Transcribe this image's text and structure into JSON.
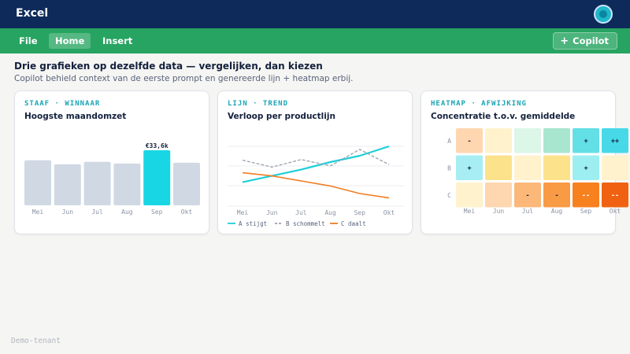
{
  "app": {
    "title": "Excel"
  },
  "ribbon": {
    "tabs": [
      {
        "label": "File",
        "active": false
      },
      {
        "label": "Home",
        "active": true
      },
      {
        "label": "Insert",
        "active": false
      }
    ],
    "copilot_label": "Copilot"
  },
  "main": {
    "heading": "Drie grafieken op dezelfde data — vergelijken, dan kiezen",
    "subheading": "Copilot behield context van de eerste prompt en genereerde lijn + heatmap erbij."
  },
  "cards": [
    {
      "eyebrow": "STAAF · WINNAAR",
      "title": "Hoogste maandomzet"
    },
    {
      "eyebrow": "LIJN · TREND",
      "title": "Verloop per productlijn"
    },
    {
      "eyebrow": "HEATMAP · AFWIJKING",
      "title": "Concentratie t.o.v. gemiddelde"
    }
  ],
  "chart_data": [
    {
      "type": "bar",
      "categories": [
        "Mei",
        "Jun",
        "Jul",
        "Aug",
        "Sep",
        "Okt"
      ],
      "values": [
        27.5,
        25.0,
        26.5,
        25.5,
        33.6,
        26.0
      ],
      "highlight_index": 4,
      "highlight_label": "€33,6k",
      "ylim": [
        0,
        36
      ],
      "colors": {
        "bar": "#cfd8e3",
        "highlight": "#19d6e4"
      }
    },
    {
      "type": "line",
      "x": [
        "Mei",
        "Jun",
        "Jul",
        "Aug",
        "Sep",
        "Okt"
      ],
      "ylim": [
        0,
        100
      ],
      "series": [
        {
          "name": "A stijgt",
          "values": [
            38,
            48,
            58,
            70,
            80,
            95
          ],
          "color": "#1dcfd9",
          "dashed": false
        },
        {
          "name": "B schommelt",
          "values": [
            73,
            62,
            74,
            64,
            90,
            66
          ],
          "color": "#9aa1ad",
          "dashed": true
        },
        {
          "name": "C daalt",
          "values": [
            53,
            48,
            40,
            32,
            20,
            13
          ],
          "color": "#ef7d22",
          "dashed": false
        }
      ]
    },
    {
      "type": "heatmap",
      "rows": [
        "A",
        "B",
        "C"
      ],
      "columns": [
        "Mei",
        "Jun",
        "Jul",
        "Aug",
        "Sep",
        "Okt"
      ],
      "cells": [
        [
          {
            "label": "-",
            "color": "#fed6b0"
          },
          {
            "label": "",
            "color": "#fff2cc"
          },
          {
            "label": "",
            "color": "#dcf6e8"
          },
          {
            "label": "",
            "color": "#a8e6cf"
          },
          {
            "label": "+",
            "color": "#63dfe6"
          },
          {
            "label": "++",
            "color": "#47d9e8"
          }
        ],
        [
          {
            "label": "+",
            "color": "#a6eef3"
          },
          {
            "label": "",
            "color": "#fde28c"
          },
          {
            "label": "",
            "color": "#fff2cc"
          },
          {
            "label": "",
            "color": "#fde28c"
          },
          {
            "label": "+",
            "color": "#9deef1"
          },
          {
            "label": "",
            "color": "#fff2cc"
          }
        ],
        [
          {
            "label": "",
            "color": "#fff2cc"
          },
          {
            "label": "",
            "color": "#fed6b0"
          },
          {
            "label": "-",
            "color": "#fbb879"
          },
          {
            "label": "-",
            "color": "#f99a45"
          },
          {
            "label": "--",
            "color": "#f7801f"
          },
          {
            "label": "--",
            "color": "#f06212"
          }
        ]
      ]
    }
  ],
  "footer": {
    "tenant": "Demo-tenant"
  }
}
